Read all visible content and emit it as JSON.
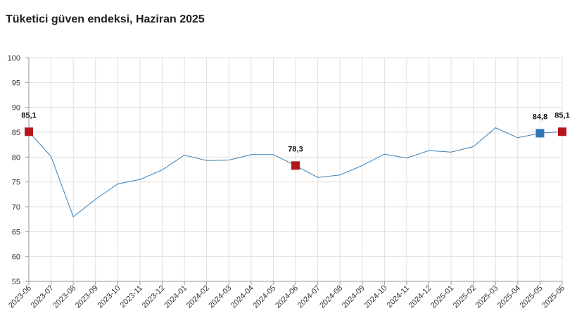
{
  "chart_data": {
    "type": "line",
    "title": "Tüketici güven endeksi, Haziran 2025",
    "xlabel": "",
    "ylabel": "",
    "ylim": [
      55,
      100
    ],
    "yticks": [
      55,
      60,
      65,
      70,
      75,
      80,
      85,
      90,
      95,
      100
    ],
    "grid": true,
    "legend": "none",
    "colors": {
      "line": "#3a7fb5",
      "highlight_red": "#b5161e",
      "highlight_blue": "#2e78b8",
      "grid": "#e0e0e0"
    },
    "categories": [
      "2023-06",
      "2023-07",
      "2023-08",
      "2023-09",
      "2023-10",
      "2023-11",
      "2023-12",
      "2024-01",
      "2024-02",
      "2024-03",
      "2024-04",
      "2024-05",
      "2024-06",
      "2024-07",
      "2024-08",
      "2024-09",
      "2024-10",
      "2024-11",
      "2024-12",
      "2025-01",
      "2025-02",
      "2025-03",
      "2025-04",
      "2025-05",
      "2025-06"
    ],
    "series": [
      {
        "values": [
          85.1,
          80.1,
          68.0,
          71.5,
          74.6,
          75.5,
          77.4,
          80.4,
          79.3,
          79.4,
          80.5,
          80.5,
          78.3,
          75.9,
          76.4,
          78.3,
          80.6,
          79.8,
          81.3,
          81.0,
          82.1,
          85.9,
          83.9,
          84.8,
          85.1
        ]
      }
    ],
    "highlights": [
      {
        "index": 0,
        "label": "85,1",
        "color": "red"
      },
      {
        "index": 12,
        "label": "78,3",
        "color": "red"
      },
      {
        "index": 23,
        "label": "84,8",
        "color": "blue"
      },
      {
        "index": 24,
        "label": "85,1",
        "color": "red"
      }
    ]
  }
}
